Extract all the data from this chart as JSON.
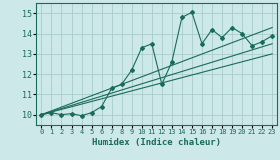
{
  "xlabel": "Humidex (Indice chaleur)",
  "bg_color": "#cce8e8",
  "grid_color": "#aacccc",
  "line_color": "#1a6b5a",
  "xlim": [
    -0.5,
    23.5
  ],
  "ylim": [
    9.5,
    15.5
  ],
  "yticks": [
    10,
    11,
    12,
    13,
    14,
    15
  ],
  "xticks": [
    0,
    1,
    2,
    3,
    4,
    5,
    6,
    7,
    8,
    9,
    10,
    11,
    12,
    13,
    14,
    15,
    16,
    17,
    18,
    19,
    20,
    21,
    22,
    23
  ],
  "curve_x": [
    0,
    1,
    2,
    3,
    4,
    5,
    6,
    7,
    8,
    9,
    10,
    11,
    12,
    13,
    14,
    15,
    16,
    17,
    18,
    19,
    20,
    21,
    22,
    23
  ],
  "curve_y": [
    10.0,
    10.1,
    10.0,
    10.05,
    9.95,
    10.1,
    10.4,
    11.3,
    11.5,
    12.2,
    13.3,
    13.5,
    11.5,
    12.6,
    14.8,
    15.05,
    13.5,
    14.2,
    13.8,
    14.3,
    14.0,
    13.4,
    13.6,
    13.9
  ],
  "line1_x": [
    0,
    23
  ],
  "line1_y": [
    10.0,
    13.5
  ],
  "line2_x": [
    0,
    23
  ],
  "line2_y": [
    10.0,
    14.3
  ],
  "line3_x": [
    0,
    23
  ],
  "line3_y": [
    10.0,
    13.0
  ]
}
